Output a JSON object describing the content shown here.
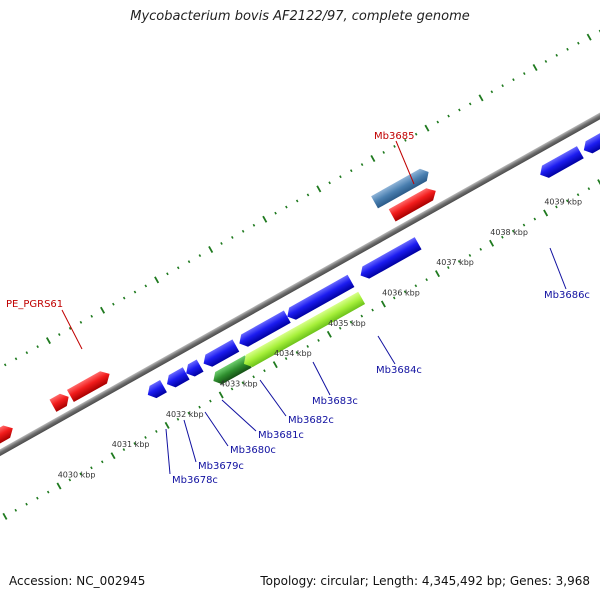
{
  "header": {
    "title": "Mycobacterium bovis AF2122/97, complete genome"
  },
  "footer": {
    "accession": "Accession: NC_002945",
    "summary": "Topology: circular; Length: 4,345,492 bp; Genes: 3,968"
  },
  "colors": {
    "backbone": "#7a7a7a",
    "tick": "#1f7a1f",
    "forward_gene": "#e11a1a",
    "reverse_gene": "#1a1ae6",
    "highlight_forward": "#4f86b8",
    "highlight_reverse_light": "#a6f03a",
    "highlight_reverse_dark": "#2f8f2f",
    "pseudo": "#bdbdbd",
    "label_forward": "#c00000",
    "label_reverse": "#1010a0"
  },
  "kbp_labels": [
    "4030 kbp",
    "4031 kbp",
    "4032 kbp",
    "4033 kbp",
    "4034 kbp",
    "4035 kbp",
    "4036 kbp",
    "4037 kbp",
    "4038 kbp",
    "4039 kbp"
  ],
  "forward_labels": [
    "Mb3685",
    "PE_PGRS61"
  ],
  "reverse_labels": [
    "Mb3678c",
    "Mb3679c",
    "Mb3680c",
    "Mb3681c",
    "Mb3682c",
    "Mb3683c",
    "Mb3684c",
    "Mb3686c"
  ]
}
